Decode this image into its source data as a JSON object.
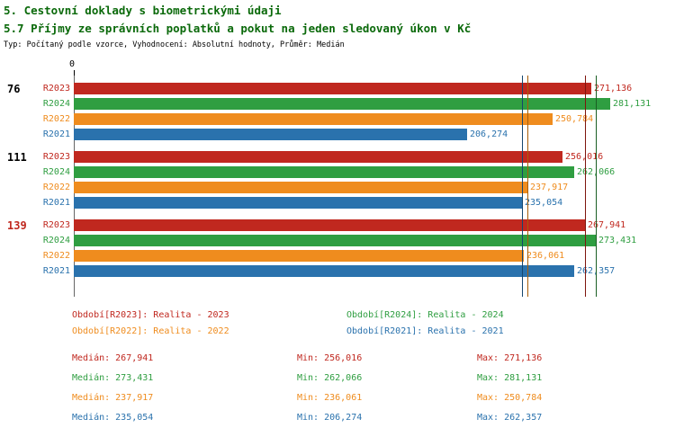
{
  "titles": {
    "line1": "5. Cestovní doklady s biometrickými údaji",
    "line2": "5.7 Příjmy ze správních poplatků a pokut na jeden sledovaný úkon v Kč",
    "subtitle": "Typ: Počítaný podle vzorce, Vyhodnocení: Absolutní hodnoty, Průměr: Medián"
  },
  "colors": {
    "red": "#c0281f",
    "green": "#2f9e41",
    "orange": "#ef8c1e",
    "blue": "#2a72ad",
    "black": "#000000",
    "title_green": "#0a690a"
  },
  "median_line_colors": {
    "red": "#7e150e",
    "green": "#1a5e24",
    "orange": "#a85e08",
    "blue": "#15466e"
  },
  "axis": {
    "zero_label": "0",
    "min": 0
  },
  "chart_data": {
    "type": "bar",
    "orientation": "horizontal",
    "title": "5.7 Příjmy ze správních poplatků a pokut na jeden sledovaný úkon v Kč",
    "subtitle": "Typ: Počítaný podle vzorce, Vyhodnocení: Absolutní hodnoty, Průměr: Medián",
    "unit": "Kč",
    "xlim": [
      0,
      281131
    ],
    "max_value": 281131,
    "series_order": [
      "R2023",
      "R2024",
      "R2022",
      "R2021"
    ],
    "groups": [
      {
        "label": "76",
        "label_color": "black",
        "bars": [
          {
            "series": "R2023",
            "color": "red",
            "value": 271136,
            "value_label": "271,136"
          },
          {
            "series": "R2024",
            "color": "green",
            "value": 281131,
            "value_label": "281,131"
          },
          {
            "series": "R2022",
            "color": "orange",
            "value": 250784,
            "value_label": "250,784"
          },
          {
            "series": "R2021",
            "color": "blue",
            "value": 206274,
            "value_label": "206,274"
          }
        ]
      },
      {
        "label": "111",
        "label_color": "black",
        "bars": [
          {
            "series": "R2023",
            "color": "red",
            "value": 256016,
            "value_label": "256,016"
          },
          {
            "series": "R2024",
            "color": "green",
            "value": 262066,
            "value_label": "262,066"
          },
          {
            "series": "R2022",
            "color": "orange",
            "value": 237917,
            "value_label": "237,917"
          },
          {
            "series": "R2021",
            "color": "blue",
            "value": 235054,
            "value_label": "235,054"
          }
        ]
      },
      {
        "label": "139",
        "label_color": "red",
        "bars": [
          {
            "series": "R2023",
            "color": "red",
            "value": 267941,
            "value_label": "267,941"
          },
          {
            "series": "R2024",
            "color": "green",
            "value": 273431,
            "value_label": "273,431"
          },
          {
            "series": "R2022",
            "color": "orange",
            "value": 236061,
            "value_label": "236,061"
          },
          {
            "series": "R2021",
            "color": "blue",
            "value": 262357,
            "value_label": "262,357"
          }
        ]
      }
    ],
    "median_lines": [
      {
        "series": "R2023",
        "color": "red",
        "value": 267941
      },
      {
        "series": "R2024",
        "color": "green",
        "value": 273431
      },
      {
        "series": "R2022",
        "color": "orange",
        "value": 237917
      },
      {
        "series": "R2021",
        "color": "blue",
        "value": 235054
      }
    ]
  },
  "legend": {
    "col1": [
      {
        "text": "Období[R2023]: Realita - 2023",
        "color": "red"
      },
      {
        "text": "Období[R2022]: Realita - 2022",
        "color": "orange"
      }
    ],
    "col2": [
      {
        "text": "Období[R2024]: Realita - 2024",
        "color": "green"
      },
      {
        "text": "Období[R2021]: Realita - 2021",
        "color": "blue"
      }
    ]
  },
  "stats": [
    {
      "color": "red",
      "median": "Medián: 267,941",
      "min": "Min: 256,016",
      "max": "Max: 271,136"
    },
    {
      "color": "green",
      "median": "Medián: 273,431",
      "min": "Min: 262,066",
      "max": "Max: 281,131"
    },
    {
      "color": "orange",
      "median": "Medián: 237,917",
      "min": "Min: 236,061",
      "max": "Max: 250,784"
    },
    {
      "color": "blue",
      "median": "Medián: 235,054",
      "min": "Min: 206,274",
      "max": "Max: 262,357"
    }
  ]
}
